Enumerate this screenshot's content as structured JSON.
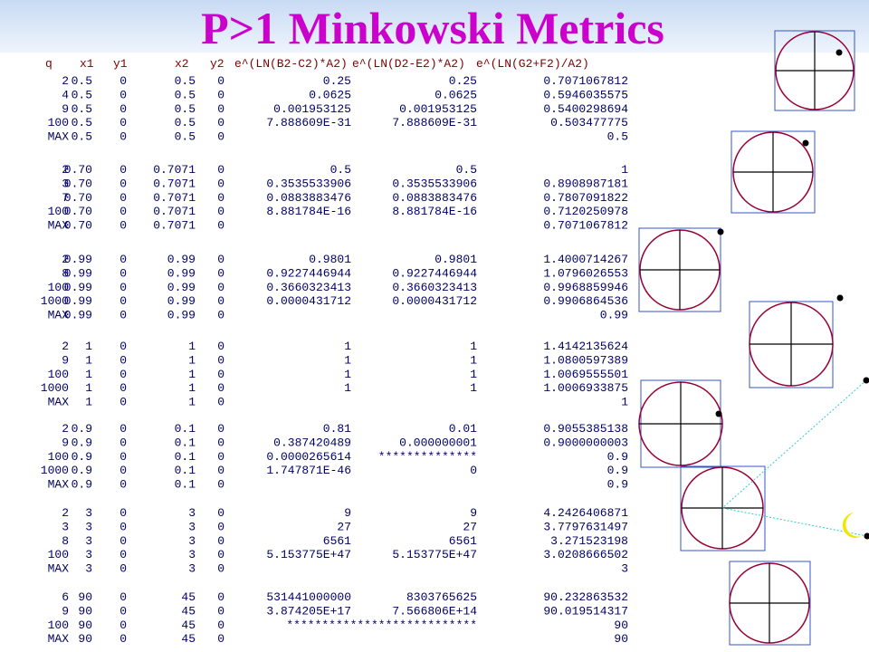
{
  "title": "P>1 Minkowski Metrics",
  "table": {
    "header": [
      "q",
      "x1",
      "y1",
      "x2",
      "y2",
      "e^(LN(B2-C2)*A2)",
      "e^(LN(D2-E2)*A2)",
      "e^(LN(G2+F2)/A2)"
    ],
    "groups": [
      [
        [
          "2",
          "0.5",
          "0",
          "0.5",
          "0",
          "0.25",
          "0.25",
          "0.7071067812"
        ],
        [
          "4",
          "0.5",
          "0",
          "0.5",
          "0",
          "0.0625",
          "0.0625",
          "0.5946035575"
        ],
        [
          "9",
          "0.5",
          "0",
          "0.5",
          "0",
          "0.001953125",
          "0.001953125",
          "0.5400298694"
        ],
        [
          "100",
          "0.5",
          "0",
          "0.5",
          "0",
          "7.888609E-31",
          "7.888609E-31",
          "0.503477775"
        ],
        [
          "MAX",
          "0.5",
          "0",
          "0.5",
          "0",
          null,
          null,
          "0.5"
        ]
      ],
      [
        [
          "2",
          "0.70",
          "0",
          "0.7071",
          "0",
          "0.5",
          "0.5",
          "1"
        ],
        [
          "3",
          "0.70",
          "0",
          "0.7071",
          "0",
          "0.3535533906",
          "0.3535533906",
          "0.8908987181"
        ],
        [
          "7",
          "0.70",
          "0",
          "0.7071",
          "0",
          "0.0883883476",
          "0.0883883476",
          "0.7807091822"
        ],
        [
          "100",
          "0.70",
          "0",
          "0.7071",
          "0",
          "8.881784E-16",
          "8.881784E-16",
          "0.7120250978"
        ],
        [
          "MAX",
          "0.70",
          "0",
          "0.7071",
          "0",
          null,
          null,
          "0.7071067812"
        ]
      ],
      [
        [
          "2",
          "0.99",
          "0",
          "0.99",
          "0",
          "0.9801",
          "0.9801",
          "1.4000714267"
        ],
        [
          "8",
          "0.99",
          "0",
          "0.99",
          "0",
          "0.9227446944",
          "0.9227446944",
          "1.0796026553"
        ],
        [
          "100",
          "0.99",
          "0",
          "0.99",
          "0",
          "0.3660323413",
          "0.3660323413",
          "0.9968859946"
        ],
        [
          "1000",
          "0.99",
          "0",
          "0.99",
          "0",
          "0.0000431712",
          "0.0000431712",
          "0.9906864536"
        ],
        [
          "MAX",
          "0.99",
          "0",
          "0.99",
          "0",
          null,
          null,
          "0.99"
        ]
      ],
      [
        [
          "2",
          "1",
          "0",
          "1",
          "0",
          "1",
          "1",
          "1.4142135624"
        ],
        [
          "9",
          "1",
          "0",
          "1",
          "0",
          "1",
          "1",
          "1.0800597389"
        ],
        [
          "100",
          "1",
          "0",
          "1",
          "0",
          "1",
          "1",
          "1.0069555501"
        ],
        [
          "1000",
          "1",
          "0",
          "1",
          "0",
          "1",
          "1",
          "1.0006933875"
        ],
        [
          "MAX",
          "1",
          "0",
          "1",
          "0",
          null,
          null,
          "1"
        ]
      ],
      [
        [
          "2",
          "0.9",
          "0",
          "0.1",
          "0",
          "0.81",
          "0.01",
          "0.9055385138"
        ],
        [
          "9",
          "0.9",
          "0",
          "0.1",
          "0",
          "0.387420489",
          "0.000000001",
          "0.9000000003"
        ],
        [
          "100",
          "0.9",
          "0",
          "0.1",
          "0",
          "0.0000265614",
          "**************",
          "0.9"
        ],
        [
          "1000",
          "0.9",
          "0",
          "0.1",
          "0",
          "1.747871E-46",
          "0",
          "0.9"
        ],
        [
          "MAX",
          "0.9",
          "0",
          "0.1",
          "0",
          null,
          null,
          "0.9"
        ]
      ],
      [
        [
          "2",
          "3",
          "0",
          "3",
          "0",
          "9",
          "9",
          "4.2426406871"
        ],
        [
          "3",
          "3",
          "0",
          "3",
          "0",
          "27",
          "27",
          "3.7797631497"
        ],
        [
          "8",
          "3",
          "0",
          "3",
          "0",
          "6561",
          "6561",
          "3.271523198"
        ],
        [
          "100",
          "3",
          "0",
          "3",
          "0",
          "5.153775E+47",
          "5.153775E+47",
          "3.0208666502"
        ],
        [
          "MAX",
          "3",
          "0",
          "3",
          "0",
          null,
          null,
          "3"
        ]
      ],
      [
        [
          "6",
          "90",
          "0",
          "45",
          "0",
          "531441000000",
          "8303765625",
          "90.232863532"
        ],
        [
          "9",
          "90",
          "0",
          "45",
          "0",
          "3.874205E+17",
          "7.566806E+14",
          "90.019514317"
        ],
        [
          "100",
          "90",
          "0",
          "45",
          "0",
          "***************************",
          null,
          "90"
        ],
        [
          "MAX",
          "90",
          "0",
          "45",
          "0",
          null,
          null,
          "90"
        ]
      ]
    ]
  }
}
